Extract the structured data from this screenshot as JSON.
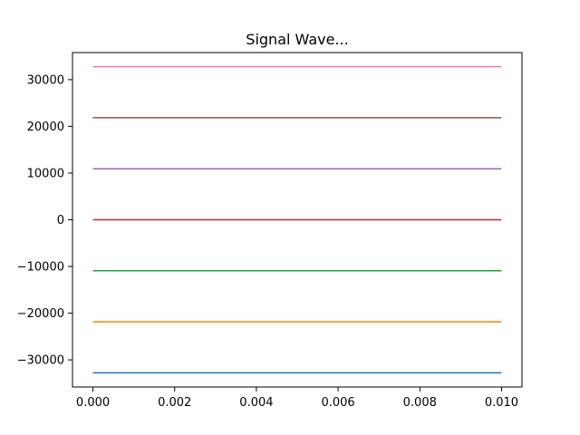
{
  "chart_data": {
    "type": "line",
    "title": "Signal Wave...",
    "xlabel": "",
    "ylabel": "",
    "xlim": [
      -0.0005,
      0.0105
    ],
    "ylim": [
      -35800,
      35800
    ],
    "x_ticks": [
      0.0,
      0.002,
      0.004,
      0.006,
      0.008,
      0.01
    ],
    "x_tick_labels": [
      "0.000",
      "0.002",
      "0.004",
      "0.006",
      "0.008",
      "0.010"
    ],
    "y_ticks": [
      -30000,
      -20000,
      -10000,
      0,
      10000,
      20000,
      30000
    ],
    "y_tick_labels": [
      "−30000",
      "−20000",
      "−10000",
      "0",
      "10000",
      "20000",
      "30000"
    ],
    "grid": false,
    "series": [
      {
        "color": "#1f77b4",
        "x": [
          0.0,
          0.01
        ],
        "y": [
          -32768,
          -32768
        ]
      },
      {
        "color": "#ff7f0e",
        "x": [
          0.0,
          0.01
        ],
        "y": [
          -21845,
          -21845
        ]
      },
      {
        "color": "#2ca02c",
        "x": [
          0.0,
          0.01
        ],
        "y": [
          -10923,
          -10923
        ]
      },
      {
        "color": "#d62728",
        "x": [
          0.0,
          0.01
        ],
        "y": [
          0,
          0
        ]
      },
      {
        "color": "#9467bd",
        "x": [
          0.0,
          0.01
        ],
        "y": [
          10923,
          10923
        ]
      },
      {
        "color": "#8c564b",
        "x": [
          0.0,
          0.01
        ],
        "y": [
          21845,
          21845
        ]
      },
      {
        "color": "#e377c2",
        "x": [
          0.0,
          0.01
        ],
        "y": [
          32767,
          32767
        ]
      }
    ]
  }
}
